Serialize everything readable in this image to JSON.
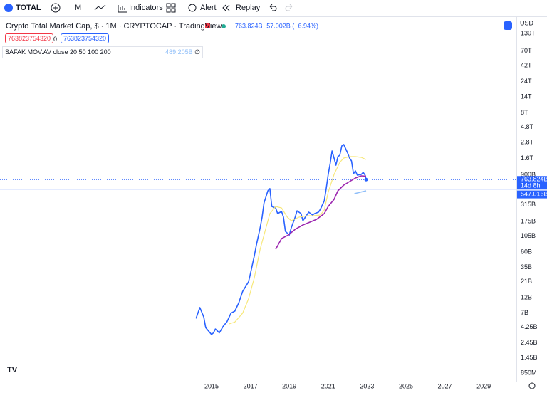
{
  "toolbar": {
    "symbol": "TOTAL",
    "interval": "M",
    "indicators": "Indicators",
    "alert": "Alert",
    "replay": "Replay"
  },
  "legend": {
    "last": "763.824B",
    "change": "−57.002B (−6.94%)",
    "input_red": "763823754320",
    "input_gap": "0",
    "input_blue": "763823754320",
    "indicator": "SAFAK MOV.AV close 20 50 100 200",
    "indicator_value": "489.205B",
    "indicator_extra": "∅"
  },
  "currency": "USD",
  "chart_data": {
    "type": "line",
    "title": "Crypto Total Market Cap, $ · 1M · CRYPTOCAP · TradingView",
    "log_scale": true,
    "grid": false,
    "xlim": [
      2004.12,
      2030.68
    ],
    "xticks": [
      2015,
      2017,
      2019,
      2021,
      2023,
      2025,
      2027,
      2029
    ],
    "ylim": [
      0.63,
      209000
    ],
    "yticks": [
      {
        "value": 130000,
        "label": "130T"
      },
      {
        "value": 70000,
        "label": "70T"
      },
      {
        "value": 42000,
        "label": "42T"
      },
      {
        "value": 24000,
        "label": "24T"
      },
      {
        "value": 14000,
        "label": "14T"
      },
      {
        "value": 8000,
        "label": "8T"
      },
      {
        "value": 4800,
        "label": "4.8T"
      },
      {
        "value": 2800,
        "label": "2.8T"
      },
      {
        "value": 1600,
        "label": "1.6T"
      },
      {
        "value": 900,
        "label": "900B"
      },
      {
        "value": 315,
        "label": "315B"
      },
      {
        "value": 175,
        "label": "175B"
      },
      {
        "value": 105,
        "label": "105B"
      },
      {
        "value": 60,
        "label": "60B"
      },
      {
        "value": 35,
        "label": "35B"
      },
      {
        "value": 21,
        "label": "21B"
      },
      {
        "value": 12,
        "label": "12B"
      },
      {
        "value": 7,
        "label": "7B"
      },
      {
        "value": 4.25,
        "label": "4.25B"
      },
      {
        "value": 2.45,
        "label": "2.45B"
      },
      {
        "value": 1.45,
        "label": "1.45B"
      },
      {
        "value": 0.85,
        "label": "850M"
      }
    ],
    "price_line": {
      "value": 547.016,
      "label": "547.016B",
      "color": "#2962ff"
    },
    "last_price": {
      "value": 763.824,
      "label": "763.824B",
      "countdown": "14d 8h",
      "color": "#2962ff"
    },
    "series": [
      {
        "color": "#2962ff",
        "width": 1.6,
        "x": [
          2014.2,
          2014.4,
          2014.6,
          2014.7,
          2015.0,
          2015.1,
          2015.2,
          2015.4,
          2015.6,
          2015.8,
          2016.0,
          2016.2,
          2016.4,
          2016.6,
          2016.9,
          2017.0,
          2017.2,
          2017.3,
          2017.5,
          2017.6,
          2017.7,
          2017.9,
          2018.0,
          2018.1,
          2018.3,
          2018.4,
          2018.6,
          2018.7,
          2018.8,
          2019.0,
          2019.1,
          2019.3,
          2019.4,
          2019.6,
          2019.7,
          2019.9,
          2020.0,
          2020.2,
          2020.3,
          2020.5,
          2020.6,
          2020.8,
          2020.9,
          2021.0,
          2021.1,
          2021.2,
          2021.3,
          2021.4,
          2021.5,
          2021.6,
          2021.7,
          2021.8,
          2022.0,
          2022.1,
          2022.2,
          2022.3,
          2022.4,
          2022.5,
          2022.7,
          2022.8,
          2022.9,
          2022.95
        ],
        "values": [
          5.8,
          8.5,
          6.1,
          4.2,
          3.3,
          3.5,
          4.0,
          3.5,
          4.4,
          5.2,
          7.0,
          7.5,
          10,
          15,
          21,
          28,
          52,
          75,
          140,
          204,
          337,
          515,
          556,
          297,
          282,
          231,
          249,
          204,
          124,
          109,
          140,
          204,
          255,
          231,
          180,
          220,
          243,
          220,
          231,
          243,
          269,
          363,
          556,
          916,
          1334,
          2094,
          1630,
          1268,
          1714,
          1800,
          2494,
          2620,
          1940,
          1630,
          1472,
          940,
          1038,
          893,
          916,
          986,
          893,
          763.824
        ]
      },
      {
        "color": "#f7e87a",
        "width": 1.2,
        "x": [
          2015.9,
          2016.2,
          2016.6,
          2016.9,
          2017.2,
          2017.5,
          2017.8,
          2018.0,
          2018.3,
          2018.6,
          2018.9,
          2019.1,
          2019.5,
          2019.9,
          2020.2,
          2020.6,
          2020.8,
          2021.0,
          2021.3,
          2021.6,
          2021.8,
          2022.1,
          2022.4,
          2022.7,
          2022.95
        ],
        "values": [
          4.8,
          5.1,
          7.0,
          11.5,
          24,
          66,
          140,
          231,
          297,
          282,
          204,
          180,
          204,
          214,
          214,
          220,
          262,
          490,
          916,
          1403,
          1630,
          1714,
          1714,
          1671,
          1549
        ]
      },
      {
        "color": "#9c27b0",
        "width": 1.6,
        "x": [
          2018.3,
          2018.6,
          2018.95,
          2019.3,
          2019.7,
          2020.05,
          2020.4,
          2020.8,
          2021.0,
          2021.3,
          2021.5,
          2021.8,
          2022.1,
          2022.4,
          2022.7,
          2022.95
        ],
        "values": [
          66,
          96,
          109,
          133,
          155,
          171,
          189,
          231,
          297,
          381,
          515,
          630,
          713,
          809,
          871,
          860
        ]
      },
      {
        "color": "#90bff9",
        "width": 1.6,
        "x": [
          2022.35,
          2022.95
        ],
        "values": [
          466,
          515
        ]
      }
    ]
  }
}
